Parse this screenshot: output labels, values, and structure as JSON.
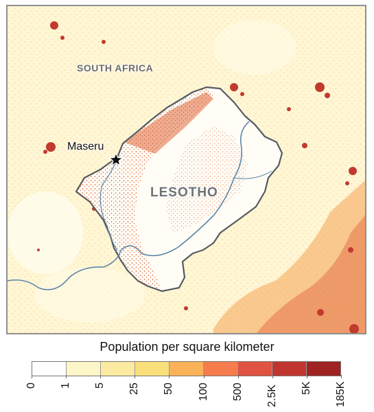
{
  "map": {
    "labels": {
      "south_africa": "SOUTH AFRICA",
      "lesotho": "LESOTHO",
      "capital": "Maseru"
    }
  },
  "legend": {
    "title": "Population per square kilometer",
    "breaks": [
      "0",
      "1",
      "5",
      "25",
      "50",
      "100",
      "500",
      "2.5K",
      "5K",
      "185K"
    ],
    "colors": [
      "#ffffff",
      "#fdf6c9",
      "#fbeaa0",
      "#fae07a",
      "#f9b258",
      "#f57c4d",
      "#e05241",
      "#c1352f",
      "#9f2323"
    ],
    "frame_color": "#8f8f8f",
    "border_color": "#555a60",
    "river_color": "#5b86a8"
  }
}
